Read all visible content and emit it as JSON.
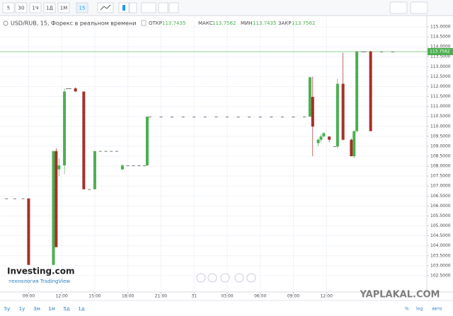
{
  "toolbar": {
    "intervals": [
      "5",
      "30",
      "1Ч",
      "1Д",
      "1М",
      "15"
    ]
  },
  "header": {
    "symbol": "USD/RUB, 15, Форекс в реальном времени",
    "open_label": "ОТКР",
    "open": "113.7435",
    "high_label": "МАКС",
    "high": "113.7562",
    "low_label": "МИН",
    "low": "113.7435",
    "close_label": "ЗАКР",
    "close": "113.7562"
  },
  "branding": {
    "logo": "Investing.com",
    "powered": "технология TradingView",
    "watermark": "YAPLAKAL.COM"
  },
  "ranges": [
    "5y",
    "1y",
    "3м",
    "1м",
    "5д",
    "1д"
  ],
  "scale_options": [
    "%",
    "log",
    "авто"
  ],
  "chart_data": {
    "type": "candlestick",
    "up_color": "#4caf50",
    "down_color": "#a5302a",
    "doji_color": "#555555",
    "last_price": 113.7562,
    "last_price_color": "#4caf50",
    "grid": true,
    "x": [
      -2.0,
      -1.25,
      -0.5,
      0.0,
      2.25,
      2.5,
      2.75,
      3.25,
      3.5,
      3.75,
      4.25,
      5.0,
      5.5,
      6.0,
      6.5,
      7.0,
      7.5,
      8.0,
      8.5,
      9.0,
      9.5,
      10.0,
      10.5,
      10.75,
      11,
      12,
      13,
      14,
      15,
      16,
      17,
      18,
      19,
      20,
      21,
      22,
      23,
      24,
      25,
      25.5,
      25.75,
      26.25,
      26.5,
      26.75,
      27.25,
      27.75,
      28.0,
      28.5,
      29.25,
      29.5,
      29.75,
      30.25,
      30.5,
      31.0,
      32.0,
      33.0
    ],
    "open": [
      106.38,
      106.38,
      106.38,
      106.38,
      103.04,
      108.76,
      107.84,
      108.04,
      111.91,
      111.91,
      111.91,
      111.75,
      106.84,
      106.84,
      108.76,
      108.76,
      108.76,
      108.76,
      107.84,
      108.04,
      108.04,
      108.04,
      108.04,
      108.04,
      110.49,
      110.49,
      110.49,
      110.49,
      110.49,
      110.49,
      110.49,
      110.49,
      110.49,
      110.49,
      110.49,
      110.49,
      110.49,
      110.49,
      110.49,
      110.49,
      111.48,
      109.16,
      109.33,
      109.5,
      109.49,
      109.0,
      108.99,
      112.14,
      109.33,
      108.5,
      109.76,
      113.76,
      113.76,
      113.76,
      113.76,
      113.76
    ],
    "high": [
      106.38,
      106.38,
      106.38,
      106.38,
      108.76,
      108.9,
      108.4,
      111.9,
      111.91,
      111.91,
      111.96,
      111.75,
      106.84,
      108.76,
      108.76,
      108.76,
      108.76,
      108.76,
      108.1,
      108.04,
      108.04,
      108.04,
      108.04,
      110.49,
      110.49,
      110.49,
      110.49,
      110.49,
      110.49,
      110.49,
      110.49,
      110.49,
      110.49,
      110.49,
      110.49,
      110.49,
      110.49,
      110.49,
      110.49,
      112.47,
      112.5,
      109.4,
      109.6,
      109.7,
      109.5,
      109.0,
      112.4,
      113.7,
      109.4,
      109.8,
      113.8,
      113.76,
      113.76,
      113.8,
      113.76,
      113.76
    ],
    "low": [
      106.38,
      106.38,
      106.38,
      103.04,
      103.04,
      103.93,
      107.5,
      107.6,
      111.91,
      111.91,
      111.75,
      106.84,
      106.84,
      106.84,
      108.76,
      108.76,
      108.76,
      108.76,
      107.8,
      108.04,
      108.04,
      108.04,
      108.04,
      108.0,
      110.49,
      110.49,
      110.49,
      110.49,
      110.49,
      110.49,
      110.49,
      110.49,
      110.49,
      110.49,
      110.49,
      110.49,
      110.49,
      110.49,
      110.49,
      110.49,
      108.5,
      109.0,
      109.2,
      109.45,
      109.2,
      109.0,
      108.9,
      109.3,
      108.5,
      108.4,
      109.7,
      113.76,
      113.76,
      109.76,
      113.76,
      113.76
    ],
    "close": [
      106.38,
      106.38,
      106.38,
      103.04,
      108.76,
      103.93,
      108.04,
      111.75,
      111.91,
      111.91,
      111.75,
      106.84,
      106.84,
      108.76,
      108.76,
      108.76,
      108.76,
      108.76,
      108.04,
      108.04,
      108.04,
      108.04,
      108.04,
      110.49,
      110.49,
      110.49,
      110.49,
      110.49,
      110.49,
      110.49,
      110.49,
      110.49,
      110.49,
      110.49,
      110.49,
      110.49,
      110.49,
      110.49,
      110.49,
      112.47,
      109.99,
      109.33,
      109.49,
      109.66,
      109.33,
      109.0,
      112.14,
      109.33,
      108.5,
      109.76,
      113.76,
      113.76,
      113.76,
      109.76,
      113.76,
      113.76
    ],
    "xlim": [
      -2.4,
      35.9
    ],
    "xticks": [
      {
        "value": 0,
        "label": "09:00"
      },
      {
        "value": 3,
        "label": "12:00"
      },
      {
        "value": 6,
        "label": "15:00"
      },
      {
        "value": 9,
        "label": "18:00"
      },
      {
        "value": 12,
        "label": "21:00"
      },
      {
        "value": 15,
        "label": "31"
      },
      {
        "value": 18,
        "label": "03:00"
      },
      {
        "value": 21,
        "label": "06:00"
      },
      {
        "value": 24,
        "label": "09:00"
      },
      {
        "value": 27,
        "label": "12:00"
      }
    ],
    "ylim": [
      102.0,
      115.0
    ],
    "yticks": [
      {
        "value": 102.5,
        "label": "102.5000"
      },
      {
        "value": 103,
        "label": "103.0000"
      },
      {
        "value": 103.5,
        "label": "103.5000"
      },
      {
        "value": 104,
        "label": "104.0000"
      },
      {
        "value": 104.5,
        "label": "104.5000"
      },
      {
        "value": 105,
        "label": "105.0000"
      },
      {
        "value": 105.5,
        "label": "105.5000"
      },
      {
        "value": 106,
        "label": "106.0000"
      },
      {
        "value": 106.5,
        "label": "106.5000"
      },
      {
        "value": 107,
        "label": "107.0000"
      },
      {
        "value": 107.5,
        "label": "107.5000"
      },
      {
        "value": 108,
        "label": "108.0000"
      },
      {
        "value": 108.5,
        "label": "108.5000"
      },
      {
        "value": 109,
        "label": "109.0000"
      },
      {
        "value": 109.5,
        "label": "109.5000"
      },
      {
        "value": 110,
        "label": "110.0000"
      },
      {
        "value": 110.5,
        "label": "110.5000"
      },
      {
        "value": 111,
        "label": "111.0000"
      },
      {
        "value": 111.5,
        "label": "111.5000"
      },
      {
        "value": 112,
        "label": "112.0000"
      },
      {
        "value": 112.5,
        "label": "112.5000"
      },
      {
        "value": 113,
        "label": "113.0000"
      },
      {
        "value": 113.5,
        "label": "113.5000"
      },
      {
        "value": 114,
        "label": "114.0000"
      },
      {
        "value": 114.5,
        "label": "114.5000"
      },
      {
        "value": 115,
        "label": "115.0000"
      }
    ]
  }
}
